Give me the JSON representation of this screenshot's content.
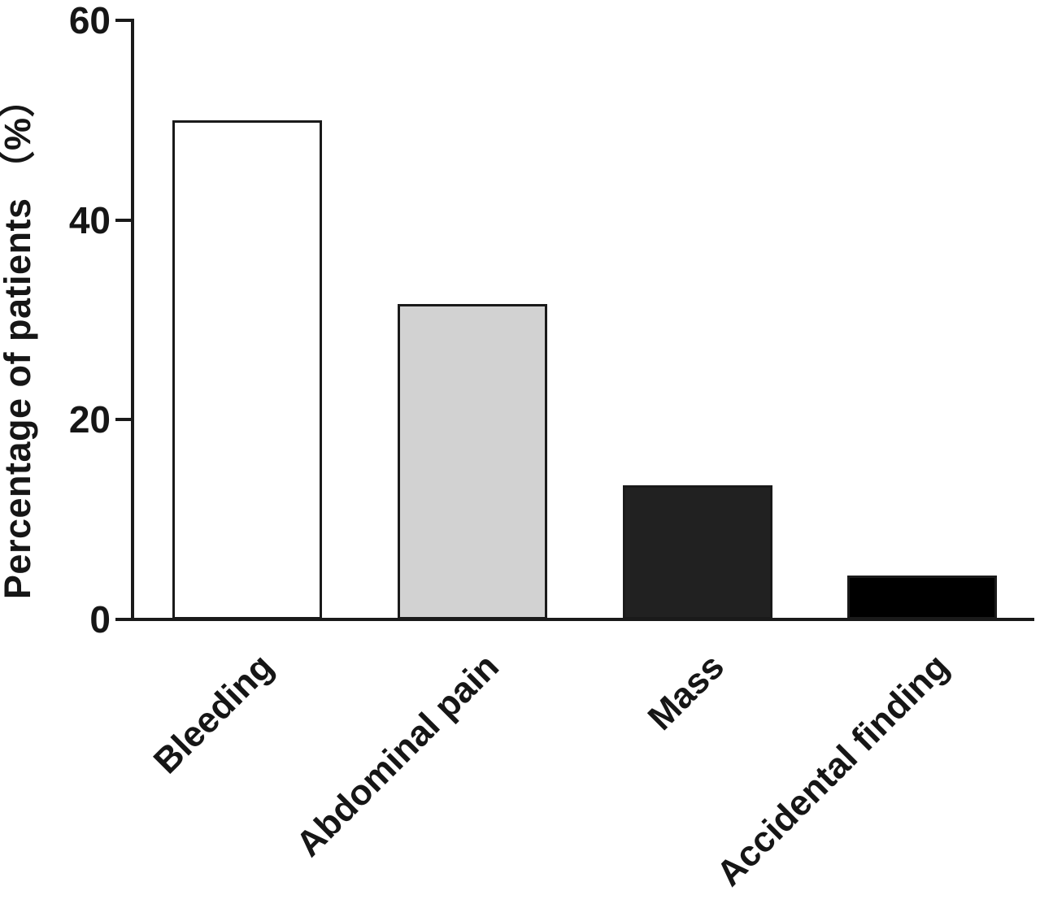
{
  "chart_data": {
    "type": "bar",
    "categories": [
      "Bleeding",
      "Abdominal pain",
      "Mass",
      "Accidental finding"
    ],
    "values": [
      50,
      31.6,
      13.4,
      4.4
    ],
    "title": "",
    "xlabel": "",
    "ylabel": "Percentage of patients （%）",
    "ylim": [
      0,
      60
    ],
    "yticks": [
      0,
      20,
      40,
      60
    ],
    "grid": false,
    "legend": null,
    "bar_fill_colors": [
      "#ffffff",
      "#d2d2d2",
      "#212121",
      "#000000"
    ],
    "bar_border_color": "#1a1a1a",
    "axis_color": "#1a1a1a",
    "background_color": "#ffffff"
  }
}
